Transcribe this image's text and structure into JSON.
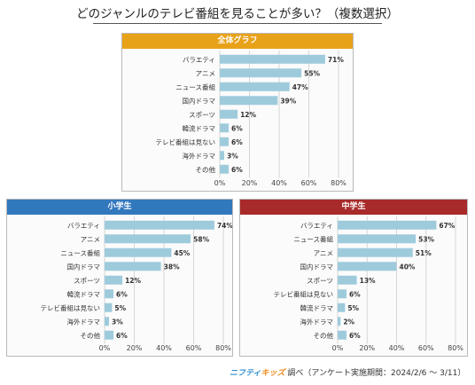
{
  "page_title": "どのジャンルのテレビ番組を見ることが多い？（複数選択）",
  "footer": {
    "brand_part1": "ニフティ",
    "brand_part2": "キッズ",
    "note": " 調べ（アンケート実施期間：2024/2/6 ～ 3/11）"
  },
  "colors": {
    "bar": "#9ecbdc",
    "overall_header": "#e8a21a",
    "elementary_header": "#3278bd",
    "junior_header": "#a82a2a"
  },
  "chart_data": [
    {
      "type": "bar",
      "title": "全体グラフ",
      "orientation": "horizontal",
      "categories": [
        "バラエティ",
        "アニメ",
        "ニュース番組",
        "国内ドラマ",
        "スポーツ",
        "韓流ドラマ",
        "テレビ番組は見ない",
        "海外ドラマ",
        "その他"
      ],
      "values": [
        71,
        55,
        47,
        39,
        12,
        6,
        6,
        3,
        6
      ],
      "value_labels": [
        "71%",
        "55%",
        "47%",
        "39%",
        "12%",
        "6%",
        "6%",
        "3%",
        "6%"
      ],
      "xlim": [
        0,
        80
      ],
      "ticks": [
        "0%",
        "20%",
        "40%",
        "60%",
        "80%"
      ],
      "grid": true
    },
    {
      "type": "bar",
      "title": "小学生",
      "orientation": "horizontal",
      "categories": [
        "バラエティ",
        "アニメ",
        "ニュース番組",
        "国内ドラマ",
        "スポーツ",
        "韓流ドラマ",
        "テレビ番組は見ない",
        "海外ドラマ",
        "その他"
      ],
      "values": [
        74,
        58,
        45,
        38,
        12,
        6,
        5,
        3,
        6
      ],
      "value_labels": [
        "74%",
        "58%",
        "45%",
        "38%",
        "12%",
        "6%",
        "5%",
        "3%",
        "6%"
      ],
      "xlim": [
        0,
        80
      ],
      "ticks": [
        "0%",
        "20%",
        "40%",
        "60%",
        "80%"
      ],
      "grid": true
    },
    {
      "type": "bar",
      "title": "中学生",
      "orientation": "horizontal",
      "categories": [
        "バラエティ",
        "ニュース番組",
        "アニメ",
        "国内ドラマ",
        "スポーツ",
        "テレビ番組は見ない",
        "韓流ドラマ",
        "海外ドラマ",
        "その他"
      ],
      "values": [
        67,
        53,
        51,
        40,
        13,
        6,
        5,
        2,
        6
      ],
      "value_labels": [
        "67%",
        "53%",
        "51%",
        "40%",
        "13%",
        "6%",
        "5%",
        "2%",
        "6%"
      ],
      "xlim": [
        0,
        80
      ],
      "ticks": [
        "0%",
        "20%",
        "40%",
        "60%",
        "80%"
      ],
      "grid": true
    }
  ]
}
